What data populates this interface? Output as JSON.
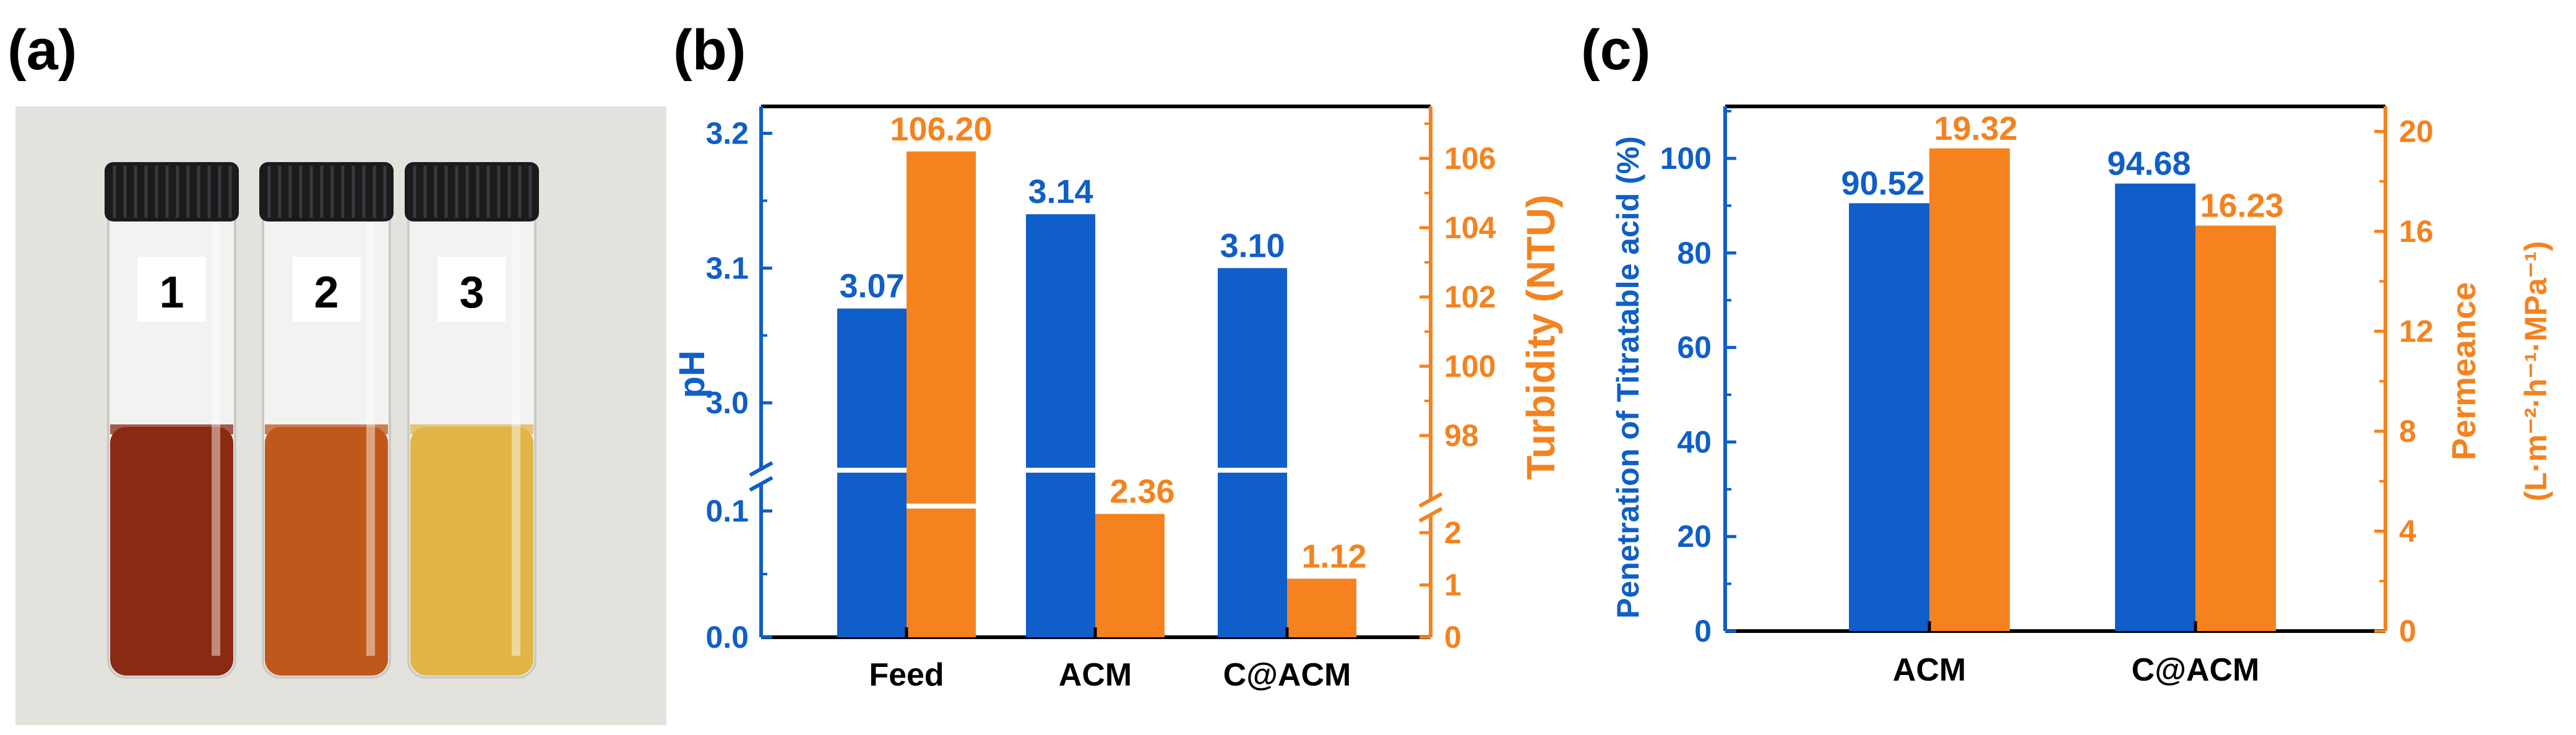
{
  "panels": {
    "a": {
      "label": "(a)",
      "vials": [
        {
          "number": "1",
          "liquid_color": "#8a2a12"
        },
        {
          "number": "2",
          "liquid_color": "#c0581c"
        },
        {
          "number": "3",
          "liquid_color": "#e2b548"
        }
      ]
    },
    "b": {
      "label": "(b)"
    },
    "c": {
      "label": "(c)"
    }
  },
  "colors": {
    "blue": "#0f5ec9",
    "orange": "#f5821e",
    "black": "#000000"
  },
  "chart_data": [
    {
      "id": "b",
      "type": "bar",
      "categories": [
        "Feed",
        "ACM",
        "C@ACM"
      ],
      "series": [
        {
          "name": "pH",
          "axis": "left",
          "color": "#0f5ec9",
          "values": [
            3.07,
            3.14,
            3.1
          ],
          "labels": [
            "3.07",
            "3.14",
            "3.10"
          ]
        },
        {
          "name": "Turbidity (NTU)",
          "axis": "right",
          "color": "#f5821e",
          "values": [
            106.2,
            2.36,
            1.12
          ],
          "labels": [
            "106.20",
            "2.36",
            "1.12"
          ]
        }
      ],
      "left_axis": {
        "label": "pH",
        "broken": true,
        "lower_range": [
          0,
          0.12
        ],
        "upper_range": [
          2.95,
          3.22
        ],
        "lower_ticks": [
          "0.0",
          "0.1"
        ],
        "upper_ticks": [
          "3.0",
          "3.1",
          "3.2"
        ]
      },
      "right_axis": {
        "label": "Turbidity (NTU)",
        "broken": true,
        "lower_range": [
          0,
          2.9
        ],
        "upper_range": [
          97,
          107.5
        ],
        "lower_ticks": [
          "0",
          "1",
          "2"
        ],
        "upper_ticks": [
          "98",
          "100",
          "102",
          "104",
          "106"
        ]
      }
    },
    {
      "id": "c",
      "type": "bar",
      "categories": [
        "ACM",
        "C@ACM"
      ],
      "series": [
        {
          "name": "Penetration of Titratable acid (%)",
          "axis": "left",
          "color": "#0f5ec9",
          "values": [
            90.52,
            94.68
          ],
          "labels": [
            "90.52",
            "94.68"
          ]
        },
        {
          "name": "Permeance",
          "axis": "right",
          "color": "#f5821e",
          "values": [
            19.32,
            16.23
          ],
          "labels": [
            "19.32",
            "16.23"
          ]
        }
      ],
      "left_axis": {
        "label": "Penetration of Titratable acid (%)",
        "ylim": [
          0,
          111
        ],
        "ticks": [
          "0",
          "20",
          "40",
          "60",
          "80",
          "100"
        ]
      },
      "right_axis": {
        "label": "Permeance",
        "unit_label": "(L·m⁻²·h⁻¹·MPa⁻¹)",
        "ylim": [
          0,
          21
        ],
        "ticks": [
          "0",
          "4",
          "8",
          "12",
          "16",
          "20"
        ]
      }
    }
  ]
}
